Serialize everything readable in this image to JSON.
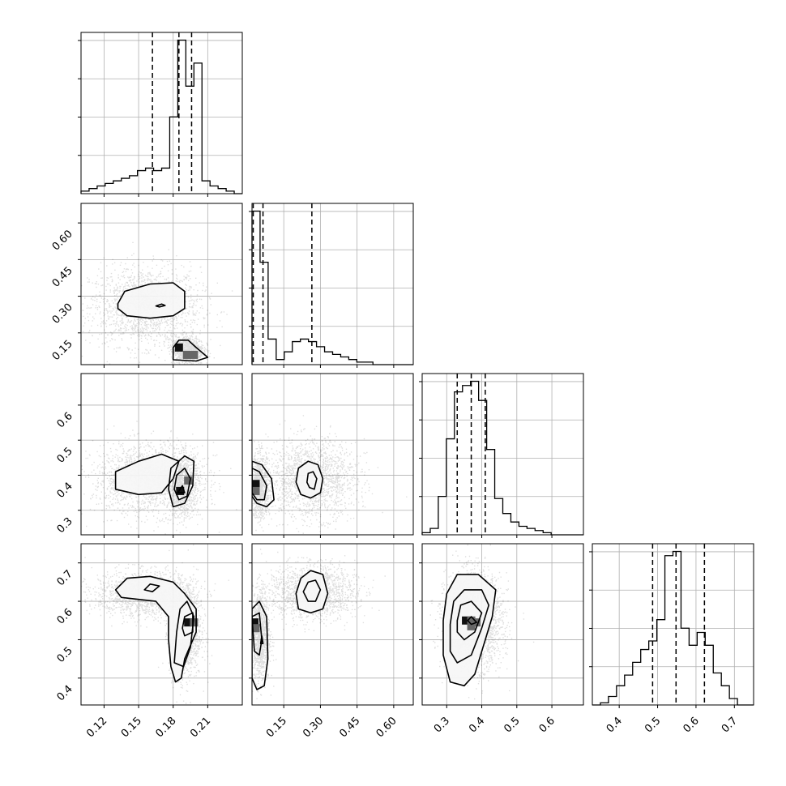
{
  "chart_data": {
    "type": "corner",
    "grid": true,
    "parameters": [
      {
        "range": [
          0.1,
          0.24
        ],
        "ticks": [
          0.12,
          0.15,
          0.18,
          0.21
        ],
        "tick_labels": [
          "0.12",
          "0.15",
          "0.18",
          "0.21"
        ],
        "quantiles": [
          0.162,
          0.185,
          0.196
        ]
      },
      {
        "range": [
          0.02,
          0.68
        ],
        "ticks": [
          0.15,
          0.3,
          0.45,
          0.6
        ],
        "tick_labels": [
          "0.15",
          "0.30",
          "0.45",
          "0.60"
        ],
        "quantiles": [
          0.025,
          0.065,
          0.265
        ]
      },
      {
        "range": [
          0.23,
          0.69
        ],
        "ticks": [
          0.3,
          0.4,
          0.5,
          0.6
        ],
        "tick_labels": [
          "0.3",
          "0.4",
          "0.5",
          "0.6"
        ],
        "quantiles": [
          0.33,
          0.37,
          0.41
        ]
      },
      {
        "range": [
          0.33,
          0.75
        ],
        "ticks": [
          0.4,
          0.5,
          0.6,
          0.7
        ],
        "tick_labels": [
          "0.4",
          "0.5",
          "0.6",
          "0.7"
        ],
        "quantiles": [
          0.487,
          0.548,
          0.622
        ]
      }
    ],
    "histograms": [
      {
        "param": 0,
        "bin_edges": [
          0.1,
          0.107,
          0.114,
          0.121,
          0.128,
          0.135,
          0.142,
          0.149,
          0.156,
          0.163,
          0.17,
          0.177,
          0.184,
          0.191,
          0.198,
          0.205,
          0.212,
          0.219,
          0.226,
          0.233,
          0.24
        ],
        "counts": [
          1,
          2,
          3,
          4,
          5,
          6,
          7,
          9,
          10,
          9,
          10,
          30,
          60,
          42,
          51,
          5,
          3,
          2,
          1,
          0
        ]
      },
      {
        "param": 1,
        "bin_edges": [
          0.02,
          0.053,
          0.086,
          0.119,
          0.152,
          0.185,
          0.218,
          0.251,
          0.284,
          0.317,
          0.35,
          0.383,
          0.416,
          0.449,
          0.482,
          0.515,
          0.548,
          0.581,
          0.614,
          0.647,
          0.68
        ],
        "counts": [
          60,
          40,
          10,
          2,
          5,
          9,
          10,
          9,
          7,
          5,
          4,
          3,
          2,
          1,
          1,
          0,
          0,
          0,
          0,
          0
        ]
      },
      {
        "param": 2,
        "bin_edges": [
          0.23,
          0.253,
          0.276,
          0.299,
          0.322,
          0.345,
          0.368,
          0.391,
          0.414,
          0.437,
          0.46,
          0.483,
          0.506,
          0.529,
          0.552,
          0.575,
          0.598,
          0.621,
          0.644,
          0.667,
          0.69
        ],
        "counts": [
          1,
          3,
          18,
          45,
          67,
          70,
          72,
          63,
          40,
          17,
          10,
          6,
          4,
          3,
          2,
          1,
          0,
          0,
          0,
          0
        ]
      },
      {
        "param": 3,
        "bin_edges": [
          0.33,
          0.351,
          0.372,
          0.393,
          0.414,
          0.435,
          0.456,
          0.477,
          0.498,
          0.519,
          0.54,
          0.561,
          0.582,
          0.603,
          0.624,
          0.645,
          0.666,
          0.687,
          0.708,
          0.729,
          0.75
        ],
        "counts": [
          0,
          1,
          4,
          9,
          14,
          20,
          26,
          30,
          40,
          70,
          72,
          36,
          28,
          34,
          28,
          15,
          9,
          3,
          0,
          0
        ]
      }
    ],
    "pairs": [
      {
        "x": 0,
        "y": 1,
        "blobs": [
          {
            "cx": 0.155,
            "cy": 0.26,
            "sx": 0.024,
            "sy": 0.08,
            "w": 0.65
          },
          {
            "cx": 0.192,
            "cy": 0.08,
            "sx": 0.007,
            "sy": 0.03,
            "w": 0.35
          }
        ],
        "contours": [
          [
            [
              0.132,
              0.27
            ],
            [
              0.138,
              0.32
            ],
            [
              0.16,
              0.35
            ],
            [
              0.18,
              0.355
            ],
            [
              0.19,
              0.32
            ],
            [
              0.19,
              0.25
            ],
            [
              0.18,
              0.22
            ],
            [
              0.16,
              0.21
            ],
            [
              0.14,
              0.22
            ],
            [
              0.132,
              0.25
            ]
          ],
          [
            [
              0.165,
              0.26
            ],
            [
              0.17,
              0.268
            ],
            [
              0.173,
              0.262
            ],
            [
              0.168,
              0.256
            ]
          ],
          [
            [
              0.18,
              0.04
            ],
            [
              0.18,
              0.09
            ],
            [
              0.185,
              0.12
            ],
            [
              0.193,
              0.12
            ],
            [
              0.2,
              0.09
            ],
            [
              0.21,
              0.05
            ],
            [
              0.2,
              0.035
            ]
          ]
        ],
        "dark_cells": [
          [
            0.185,
            0.09
          ],
          [
            0.192,
            0.06
          ],
          [
            0.198,
            0.06
          ]
        ]
      },
      {
        "x": 0,
        "y": 2,
        "blobs": [
          {
            "cx": 0.158,
            "cy": 0.39,
            "sx": 0.024,
            "sy": 0.05,
            "w": 0.65
          },
          {
            "cx": 0.188,
            "cy": 0.37,
            "sx": 0.007,
            "sy": 0.045,
            "w": 0.35
          }
        ],
        "contours": [
          [
            [
              0.13,
              0.38
            ],
            [
              0.13,
              0.41
            ],
            [
              0.15,
              0.44
            ],
            [
              0.17,
              0.46
            ],
            [
              0.185,
              0.44
            ],
            [
              0.18,
              0.39
            ],
            [
              0.17,
              0.35
            ],
            [
              0.15,
              0.345
            ],
            [
              0.13,
              0.36
            ]
          ],
          [
            [
              0.176,
              0.36
            ],
            [
              0.178,
              0.42
            ],
            [
              0.19,
              0.455
            ],
            [
              0.198,
              0.44
            ],
            [
              0.197,
              0.37
            ],
            [
              0.19,
              0.32
            ],
            [
              0.18,
              0.31
            ]
          ],
          [
            [
              0.181,
              0.36
            ],
            [
              0.183,
              0.4
            ],
            [
              0.19,
              0.42
            ],
            [
              0.195,
              0.39
            ],
            [
              0.192,
              0.34
            ],
            [
              0.185,
              0.33
            ]
          ],
          [
            [
              0.184,
              0.35
            ],
            [
              0.188,
              0.37
            ],
            [
              0.19,
              0.35
            ]
          ]
        ],
        "dark_cells": [
          [
            0.186,
            0.355
          ],
          [
            0.193,
            0.385
          ]
        ]
      },
      {
        "x": 0,
        "y": 3,
        "blobs": [
          {
            "cx": 0.155,
            "cy": 0.62,
            "sx": 0.022,
            "sy": 0.03,
            "w": 0.55
          },
          {
            "cx": 0.19,
            "cy": 0.52,
            "sx": 0.007,
            "sy": 0.06,
            "w": 0.45
          }
        ],
        "contours": [
          [
            [
              0.13,
              0.63
            ],
            [
              0.14,
              0.66
            ],
            [
              0.16,
              0.665
            ],
            [
              0.18,
              0.65
            ],
            [
              0.19,
              0.62
            ],
            [
              0.2,
              0.58
            ],
            [
              0.2,
              0.52
            ],
            [
              0.19,
              0.45
            ],
            [
              0.187,
              0.4
            ],
            [
              0.182,
              0.39
            ],
            [
              0.178,
              0.43
            ],
            [
              0.176,
              0.5
            ],
            [
              0.176,
              0.56
            ],
            [
              0.165,
              0.6
            ],
            [
              0.15,
              0.605
            ],
            [
              0.135,
              0.61
            ]
          ],
          [
            [
              0.155,
              0.63
            ],
            [
              0.16,
              0.645
            ],
            [
              0.168,
              0.64
            ],
            [
              0.162,
              0.625
            ]
          ],
          [
            [
              0.181,
              0.44
            ],
            [
              0.183,
              0.52
            ],
            [
              0.186,
              0.58
            ],
            [
              0.192,
              0.6
            ],
            [
              0.198,
              0.56
            ],
            [
              0.195,
              0.48
            ],
            [
              0.189,
              0.43
            ]
          ],
          [
            [
              0.188,
              0.53
            ],
            [
              0.19,
              0.56
            ],
            [
              0.197,
              0.57
            ],
            [
              0.197,
              0.52
            ],
            [
              0.19,
              0.51
            ]
          ]
        ],
        "dark_cells": [
          [
            0.193,
            0.545
          ],
          [
            0.198,
            0.545
          ]
        ]
      },
      {
        "x": 1,
        "y": 2,
        "blobs": [
          {
            "cx": 0.265,
            "cy": 0.39,
            "sx": 0.09,
            "sy": 0.055,
            "w": 0.65
          },
          {
            "cx": 0.05,
            "cy": 0.37,
            "sx": 0.02,
            "sy": 0.045,
            "w": 0.35
          }
        ],
        "contours": [
          [
            [
              0.2,
              0.38
            ],
            [
              0.21,
              0.42
            ],
            [
              0.25,
              0.44
            ],
            [
              0.29,
              0.43
            ],
            [
              0.31,
              0.39
            ],
            [
              0.3,
              0.35
            ],
            [
              0.26,
              0.335
            ],
            [
              0.22,
              0.345
            ]
          ],
          [
            [
              0.245,
              0.38
            ],
            [
              0.25,
              0.405
            ],
            [
              0.27,
              0.41
            ],
            [
              0.285,
              0.39
            ],
            [
              0.275,
              0.36
            ],
            [
              0.255,
              0.365
            ]
          ],
          [
            [
              0.02,
              0.44
            ],
            [
              0.06,
              0.43
            ],
            [
              0.1,
              0.39
            ],
            [
              0.11,
              0.33
            ],
            [
              0.08,
              0.31
            ],
            [
              0.04,
              0.32
            ],
            [
              0.02,
              0.34
            ]
          ],
          [
            [
              0.02,
              0.42
            ],
            [
              0.05,
              0.41
            ],
            [
              0.08,
              0.37
            ],
            [
              0.07,
              0.33
            ],
            [
              0.04,
              0.33
            ],
            [
              0.02,
              0.35
            ]
          ]
        ],
        "dark_cells": [
          [
            0.035,
            0.375
          ],
          [
            0.035,
            0.355
          ]
        ]
      },
      {
        "x": 1,
        "y": 3,
        "blobs": [
          {
            "cx": 0.265,
            "cy": 0.625,
            "sx": 0.09,
            "sy": 0.035,
            "w": 0.6
          },
          {
            "cx": 0.05,
            "cy": 0.51,
            "sx": 0.02,
            "sy": 0.06,
            "w": 0.4
          }
        ],
        "contours": [
          [
            [
              0.2,
              0.62
            ],
            [
              0.22,
              0.66
            ],
            [
              0.26,
              0.68
            ],
            [
              0.31,
              0.67
            ],
            [
              0.33,
              0.62
            ],
            [
              0.31,
              0.58
            ],
            [
              0.26,
              0.57
            ],
            [
              0.21,
              0.58
            ]
          ],
          [
            [
              0.23,
              0.625
            ],
            [
              0.25,
              0.65
            ],
            [
              0.28,
              0.655
            ],
            [
              0.3,
              0.63
            ],
            [
              0.28,
              0.6
            ],
            [
              0.25,
              0.6
            ]
          ],
          [
            [
              0.02,
              0.58
            ],
            [
              0.05,
              0.6
            ],
            [
              0.08,
              0.56
            ],
            [
              0.085,
              0.45
            ],
            [
              0.07,
              0.38
            ],
            [
              0.04,
              0.37
            ],
            [
              0.02,
              0.4
            ]
          ],
          [
            [
              0.02,
              0.56
            ],
            [
              0.05,
              0.57
            ],
            [
              0.06,
              0.5
            ],
            [
              0.05,
              0.46
            ],
            [
              0.03,
              0.47
            ]
          ],
          [
            [
              0.055,
              0.49
            ],
            [
              0.06,
              0.51
            ],
            [
              0.065,
              0.49
            ]
          ]
        ],
        "dark_cells": [
          [
            0.03,
            0.545
          ],
          [
            0.035,
            0.53
          ]
        ]
      },
      {
        "x": 2,
        "y": 3,
        "blobs": [
          {
            "cx": 0.375,
            "cy": 0.55,
            "sx": 0.04,
            "sy": 0.06,
            "w": 1.0
          }
        ],
        "contours": [
          [
            [
              0.29,
              0.55
            ],
            [
              0.3,
              0.62
            ],
            [
              0.33,
              0.67
            ],
            [
              0.39,
              0.67
            ],
            [
              0.44,
              0.63
            ],
            [
              0.43,
              0.56
            ],
            [
              0.41,
              0.5
            ],
            [
              0.38,
              0.41
            ],
            [
              0.35,
              0.38
            ],
            [
              0.31,
              0.39
            ],
            [
              0.29,
              0.46
            ]
          ],
          [
            [
              0.31,
              0.54
            ],
            [
              0.32,
              0.6
            ],
            [
              0.35,
              0.63
            ],
            [
              0.4,
              0.63
            ],
            [
              0.42,
              0.59
            ],
            [
              0.4,
              0.53
            ],
            [
              0.37,
              0.46
            ],
            [
              0.33,
              0.44
            ],
            [
              0.31,
              0.47
            ]
          ],
          [
            [
              0.33,
              0.55
            ],
            [
              0.34,
              0.59
            ],
            [
              0.37,
              0.6
            ],
            [
              0.4,
              0.57
            ],
            [
              0.38,
              0.52
            ],
            [
              0.35,
              0.5
            ],
            [
              0.33,
              0.52
            ]
          ],
          [
            [
              0.36,
              0.55
            ],
            [
              0.37,
              0.56
            ],
            [
              0.385,
              0.545
            ],
            [
              0.37,
              0.54
            ]
          ]
        ],
        "dark_cells": [
          [
            0.355,
            0.55
          ],
          [
            0.37,
            0.55
          ],
          [
            0.385,
            0.545
          ],
          [
            0.37,
            0.535
          ]
        ]
      }
    ]
  }
}
